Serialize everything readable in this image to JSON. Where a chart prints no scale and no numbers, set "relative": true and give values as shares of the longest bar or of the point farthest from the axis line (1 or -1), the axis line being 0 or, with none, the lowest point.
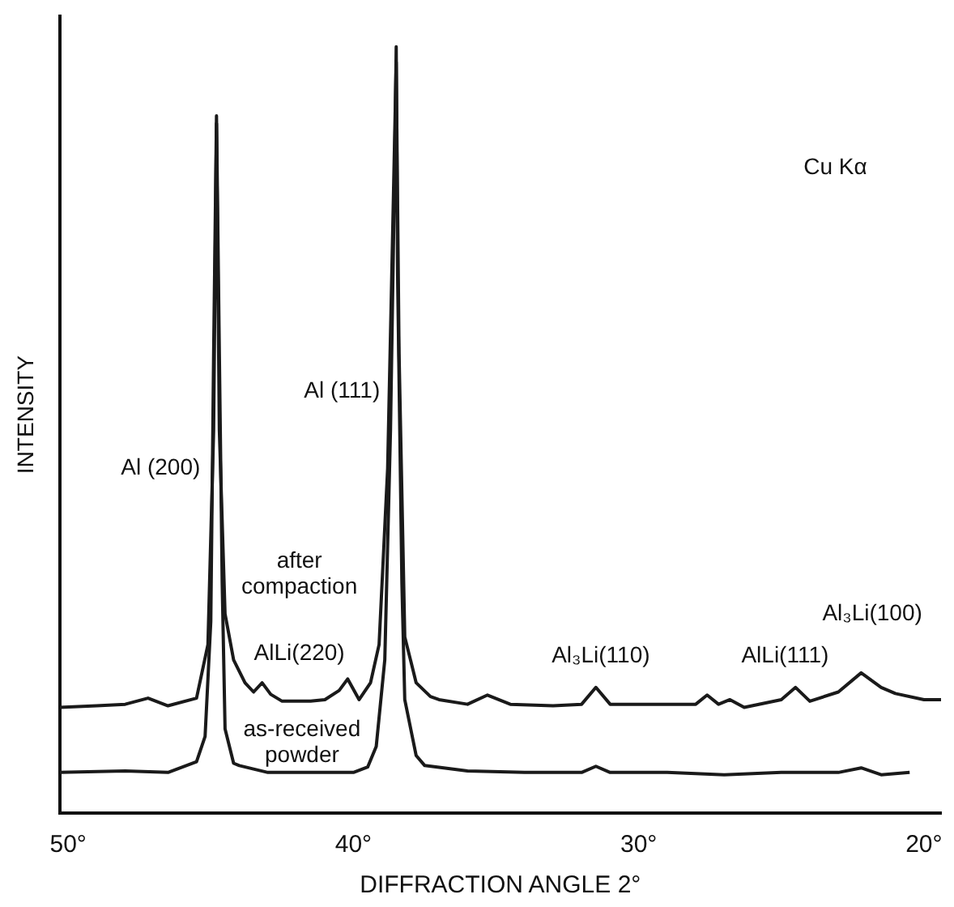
{
  "chart_data": {
    "type": "line",
    "relative": true,
    "xlabel": "DIFFRACTION ANGLE 2°",
    "ylabel": "INTENSITY",
    "xlim": [
      50.3,
      19.4
    ],
    "xticks": [
      {
        "value": 50,
        "label": "50°"
      },
      {
        "value": 40,
        "label": "40°"
      },
      {
        "value": 30,
        "label": "30°"
      },
      {
        "value": 20,
        "label": "20°"
      }
    ],
    "grid": false,
    "legend": false,
    "marker": "none",
    "line_style": "solid",
    "series": [
      {
        "color": "#1a1a1a",
        "x": [
          50.3,
          49,
          48,
          47.2,
          46.5,
          45.5,
          45.1,
          44.9,
          44.8,
          44.7,
          44.5,
          44.2,
          43.8,
          43.5,
          43.2,
          42.9,
          42.5,
          41.5,
          41,
          40.5,
          40.2,
          39.8,
          39.4,
          39.1,
          38.8,
          38.6,
          38.5,
          38.4,
          38.2,
          37.8,
          37.3,
          37,
          36,
          35.3,
          34.5,
          33,
          32,
          31.5,
          31,
          30.5,
          29,
          28,
          27.6,
          27.2,
          26.8,
          26.3,
          25,
          24.5,
          24,
          23,
          22.2,
          21.5,
          21,
          20,
          19.4
        ],
        "values": [
          0.138,
          0.14,
          0.142,
          0.15,
          0.14,
          0.15,
          0.22,
          0.5,
          0.9,
          0.5,
          0.26,
          0.2,
          0.17,
          0.158,
          0.17,
          0.155,
          0.146,
          0.146,
          0.148,
          0.16,
          0.175,
          0.148,
          0.17,
          0.22,
          0.45,
          0.8,
          0.98,
          0.6,
          0.23,
          0.17,
          0.152,
          0.148,
          0.142,
          0.154,
          0.142,
          0.14,
          0.142,
          0.164,
          0.142,
          0.142,
          0.142,
          0.142,
          0.154,
          0.142,
          0.148,
          0.138,
          0.148,
          0.164,
          0.146,
          0.158,
          0.183,
          0.164,
          0.156,
          0.148,
          0.148
        ]
      },
      {
        "color": "#1a1a1a",
        "x": [
          50.3,
          48,
          46.5,
          45.5,
          45.2,
          45,
          44.9,
          44.8,
          44.7,
          44.6,
          44.5,
          44.2,
          44,
          43,
          41,
          40,
          39.5,
          39.2,
          38.9,
          38.7,
          38.55,
          38.5,
          38.45,
          38.3,
          38.2,
          37.8,
          37.5,
          36,
          34,
          32,
          31.5,
          31,
          29,
          27,
          25,
          23,
          22.2,
          21.5,
          20.5
        ],
        "values": [
          0.053,
          0.055,
          0.053,
          0.067,
          0.1,
          0.25,
          0.6,
          0.91,
          0.6,
          0.3,
          0.11,
          0.065,
          0.062,
          0.053,
          0.053,
          0.053,
          0.06,
          0.087,
          0.2,
          0.5,
          0.85,
          1,
          0.7,
          0.3,
          0.148,
          0.075,
          0.062,
          0.055,
          0.053,
          0.053,
          0.061,
          0.053,
          0.053,
          0.05,
          0.053,
          0.053,
          0.059,
          0.05,
          0.053
        ]
      }
    ],
    "annotations": [
      {
        "text": "Al (200)",
        "x": 44.8,
        "y": 0.45
      },
      {
        "text": "Al (111)",
        "x": 38.5,
        "y": 0.55
      },
      "after compaction",
      "AlLi(220)",
      "as-received powder",
      "Al₃Li(110)",
      "AlLi(111)",
      "Al₃Li(100)",
      "Cu Kα"
    ]
  }
}
